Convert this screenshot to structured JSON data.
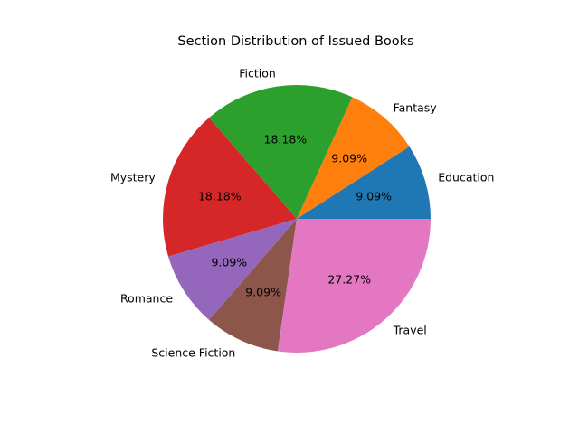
{
  "chart_data": {
    "type": "pie",
    "title": "Section Distribution of Issued Books",
    "start_angle_deg": 0,
    "direction": "counterclockwise",
    "slices": [
      {
        "label": "Education",
        "value": 1,
        "percent_label": "9.09%",
        "color": "#1f77b4"
      },
      {
        "label": "Fantasy",
        "value": 1,
        "percent_label": "9.09%",
        "color": "#ff7f0e"
      },
      {
        "label": "Fiction",
        "value": 2,
        "percent_label": "18.18%",
        "color": "#2ca02c"
      },
      {
        "label": "Mystery",
        "value": 2,
        "percent_label": "18.18%",
        "color": "#d62728"
      },
      {
        "label": "Romance",
        "value": 1,
        "percent_label": "9.09%",
        "color": "#9467bd"
      },
      {
        "label": "Science Fiction",
        "value": 1,
        "percent_label": "9.09%",
        "color": "#8c564b"
      },
      {
        "label": "Travel",
        "value": 3,
        "percent_label": "27.27%",
        "color": "#e377c2"
      }
    ]
  }
}
